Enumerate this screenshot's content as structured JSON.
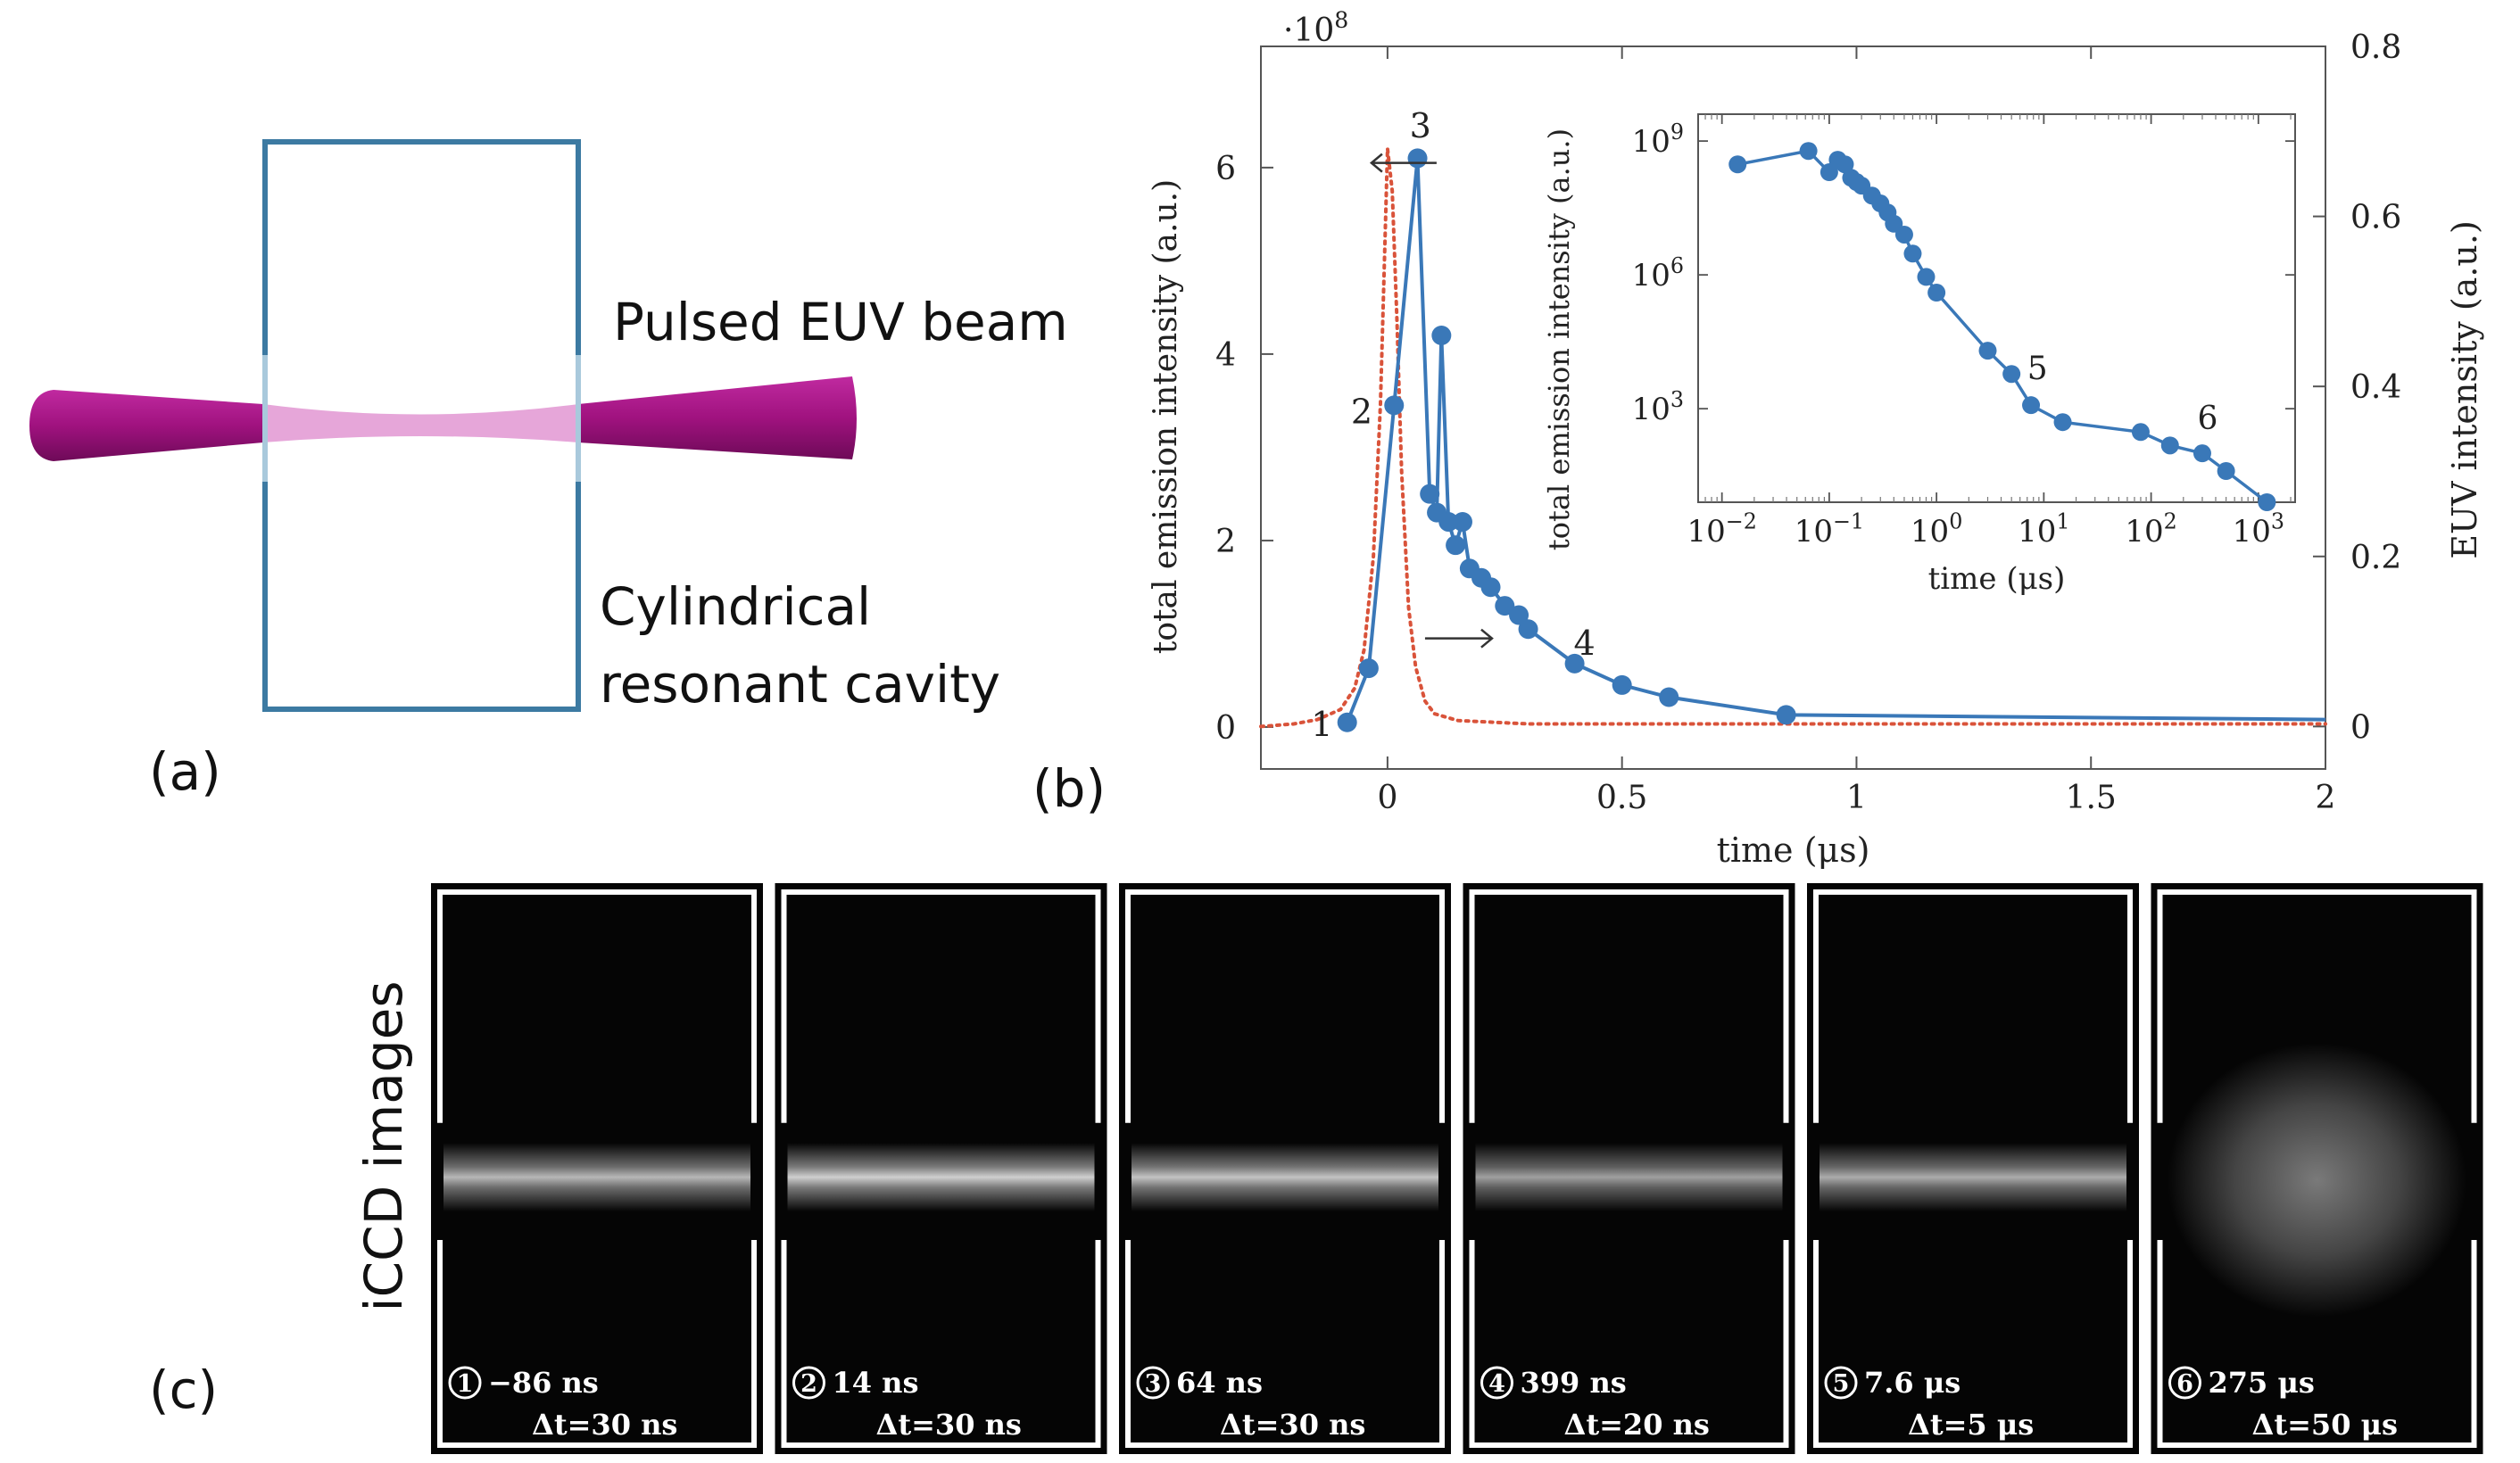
{
  "panel_a": {
    "label": "(a)",
    "beam_label": "Pulsed EUV beam",
    "cavity_label_line1": "Cylindrical",
    "cavity_label_line2": "resonant cavity",
    "colors": {
      "cavity": "#3c7aa2",
      "beam_outside": "#a0127f",
      "beam_inside": "#e6a6d9"
    }
  },
  "panel_b": {
    "label": "(b)",
    "chart_data": [
      {
        "type": "line",
        "title": "",
        "multiplier_label": "·10",
        "multiplier_exp": "8",
        "xlabel": "time (μs)",
        "ylabel_left": "total emission intensity (a.u.)",
        "ylabel_right": "EUV intensity (a.u.)",
        "xlim": [
          -0.27,
          2.0
        ],
        "ylim_left": [
          -0.45,
          7.3
        ],
        "ylim_right": [
          -0.05,
          0.8
        ],
        "x_ticks": [
          0,
          0.5,
          1,
          1.5,
          2
        ],
        "x_tick_labels": [
          "0",
          "0.5",
          "1",
          "1.5",
          "2"
        ],
        "y_ticks_left": [
          0,
          2,
          4,
          6
        ],
        "y_tick_labels_left": [
          "0",
          "2",
          "4",
          "6"
        ],
        "y_ticks_right": [
          0,
          0.2,
          0.4,
          0.6,
          0.8
        ],
        "y_tick_labels_right": [
          "0",
          "0.2",
          "0.4",
          "0.6",
          "0.8"
        ],
        "series": [
          {
            "name": "total emission intensity",
            "axis": "left",
            "color": "#3a78b8",
            "x": [
              -0.086,
              -0.04,
              0.014,
              0.064,
              0.09,
              0.105,
              0.115,
              0.13,
              0.145,
              0.16,
              0.175,
              0.2,
              0.22,
              0.25,
              0.28,
              0.3,
              0.399,
              0.5,
              0.6,
              0.85,
              2.0
            ],
            "y": [
              0.05,
              0.63,
              3.45,
              6.1,
              2.5,
              2.3,
              4.2,
              2.2,
              1.95,
              2.2,
              1.7,
              1.6,
              1.5,
              1.3,
              1.2,
              1.05,
              0.68,
              0.45,
              0.32,
              0.13,
              0.08
            ],
            "markers": [
              true,
              true,
              true,
              true,
              true,
              true,
              true,
              true,
              true,
              true,
              true,
              true,
              true,
              true,
              true,
              true,
              true,
              true,
              true,
              true,
              false
            ]
          },
          {
            "name": "EUV intensity",
            "axis": "right",
            "color": "#d9533a",
            "style": "dotted",
            "x": [
              -0.27,
              -0.2,
              -0.15,
              -0.1,
              -0.07,
              -0.05,
              -0.03,
              -0.015,
              -0.005,
              0.0,
              0.01,
              0.02,
              0.03,
              0.045,
              0.06,
              0.08,
              0.1,
              0.15,
              0.3,
              2.0
            ],
            "y": [
              0.0,
              0.003,
              0.008,
              0.02,
              0.045,
              0.09,
              0.2,
              0.38,
              0.58,
              0.68,
              0.63,
              0.48,
              0.3,
              0.14,
              0.07,
              0.03,
              0.015,
              0.007,
              0.003,
              0.003
            ]
          }
        ],
        "annotations": [
          {
            "text": "1",
            "x": -0.14,
            "y": 0.03
          },
          {
            "text": "2",
            "x": -0.055,
            "y": 3.38
          },
          {
            "text": "3",
            "x": 0.07,
            "y": 6.45
          },
          {
            "text": "4",
            "x": 0.42,
            "y": 0.9
          }
        ],
        "axis_arrows": [
          {
            "direction": "left",
            "x": 0.0,
            "y": 6.05
          },
          {
            "direction": "right",
            "x": 0.08,
            "y": 0.95
          }
        ]
      },
      {
        "type": "line",
        "title": "",
        "xscale": "log",
        "yscale": "log",
        "xlabel": "time (μs)",
        "ylabel": "total emission intensity (a.u.)",
        "xlim": [
          0.006,
          2200
        ],
        "ylim": [
          8,
          4000000000
        ],
        "x_ticks": [
          0.01,
          0.1,
          1,
          10,
          100,
          1000
        ],
        "x_tick_base": "10",
        "x_tick_exps": [
          "−2",
          "−1",
          "0",
          "1",
          "2",
          "3"
        ],
        "y_ticks": [
          1000,
          1000000,
          1000000000
        ],
        "y_tick_base": "10",
        "y_tick_exps": [
          "3",
          "6",
          "9"
        ],
        "series": [
          {
            "name": "total emission intensity",
            "color": "#3a78b8",
            "x": [
              0.014,
              0.064,
              0.1,
              0.12,
              0.14,
              0.16,
              0.18,
              0.2,
              0.25,
              0.3,
              0.35,
              0.4,
              0.5,
              0.6,
              0.8,
              1,
              3,
              5,
              7.6,
              15,
              80,
              150,
              300,
              500,
              1200
            ],
            "y": [
              300000000,
              600000000,
              200000000,
              380000000,
              300000000,
              150000000,
              120000000,
              100000000,
              60000000,
              40000000,
              25000000,
              14000000,
              8000000,
              3000000,
              900000,
              400000,
              20000,
              6000,
              1200,
              500,
              300,
              150,
              100,
              40,
              8
            ],
            "markers": true
          }
        ],
        "annotations": [
          {
            "text": "5",
            "x": 7.0,
            "y": 8000
          },
          {
            "text": "6",
            "x": 270,
            "y": 600
          }
        ]
      }
    ]
  },
  "panel_c": {
    "label": "(c)",
    "side_label": "iCCD images",
    "frames": [
      {
        "num": "1",
        "time": "−86 ns",
        "dt": "Δt=30 ns",
        "kind": "beam",
        "intensity": 0.75
      },
      {
        "num": "2",
        "time": "14 ns",
        "dt": "Δt=30 ns",
        "kind": "beam",
        "intensity": 0.85
      },
      {
        "num": "3",
        "time": "64 ns",
        "dt": "Δt=30 ns",
        "kind": "beam",
        "intensity": 0.8
      },
      {
        "num": "4",
        "time": "399 ns",
        "dt": "Δt=20 ns",
        "kind": "beam",
        "intensity": 0.65
      },
      {
        "num": "5",
        "time": "7.6 μs",
        "dt": "Δt=5 μs",
        "kind": "beam",
        "intensity": 0.7
      },
      {
        "num": "6",
        "time": "275 μs",
        "dt": "Δt=50 μs",
        "kind": "cloud",
        "intensity": 0.55
      }
    ]
  }
}
